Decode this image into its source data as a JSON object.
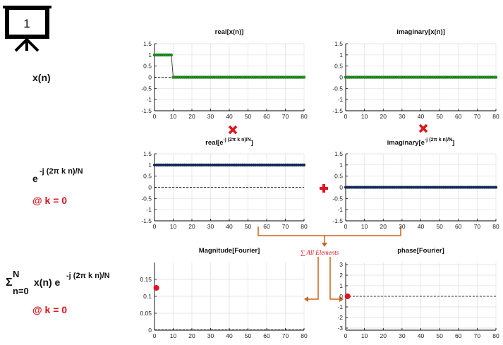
{
  "slide": {
    "number": "1",
    "xn_label": "x(n)",
    "exp_base": "e",
    "exp_sup": "-j (2π k n)/N",
    "k_note_1": "@ k = 0",
    "sum_sigma": "Σ",
    "sum_upper": "N",
    "sum_lower": "n=0",
    "sum_body": "x(n) e",
    "sum_sup": "-j (2π k n)/N",
    "k_note_2": "@ k = 0",
    "all_elements": "∑ All Elements",
    "colors": {
      "accent": "#e0141e",
      "arrow": "#c8641e",
      "green": "#1a9a1a",
      "navy": "#1a1a80"
    }
  },
  "chart_data": [
    {
      "id": "real_x",
      "type": "line",
      "title": "real[x(n)]",
      "xlim": [
        0,
        80
      ],
      "ylim": [
        -1.5,
        1.5
      ],
      "xticks": [
        0,
        10,
        20,
        30,
        40,
        50,
        60,
        70,
        80
      ],
      "yticks": [
        -1.5,
        -1,
        -0.5,
        0,
        0.5,
        1,
        1.5
      ],
      "grid": true,
      "series": [
        {
          "color": "#1a9a1a",
          "marker": "circle",
          "x_range": [
            0,
            80
          ],
          "rule": "1 for n in 0..9, 0 for n in 10..80"
        }
      ]
    },
    {
      "id": "imag_x",
      "type": "line",
      "title": "imaginary[x(n)]",
      "xlim": [
        0,
        80
      ],
      "ylim": [
        -1.5,
        1.5
      ],
      "xticks": [
        0,
        10,
        20,
        30,
        40,
        50,
        60,
        70,
        80
      ],
      "yticks": [
        -1.5,
        -1,
        -0.5,
        0,
        0.5,
        1,
        1.5
      ],
      "grid": true,
      "series": [
        {
          "color": "#1a9a1a",
          "marker": "circle",
          "x_range": [
            0,
            80
          ],
          "rule": "0 for all n"
        }
      ]
    },
    {
      "id": "real_e",
      "type": "line",
      "title_base": "real[e",
      "title_sup": "-j (2π k n)/N",
      "title_end": "]",
      "xlim": [
        0,
        80
      ],
      "ylim": [
        -1.5,
        1.5
      ],
      "xticks": [
        0,
        10,
        20,
        30,
        40,
        50,
        60,
        70,
        80
      ],
      "yticks": [
        -1.5,
        -1,
        -0.5,
        0,
        0.5,
        1,
        1.5
      ],
      "grid": true,
      "series": [
        {
          "color": "#1a1a80",
          "marker": "circle",
          "x_range": [
            0,
            80
          ],
          "rule": "1 for all n"
        }
      ]
    },
    {
      "id": "imag_e",
      "type": "line",
      "title_base": "imaginary[e",
      "title_sup": "-j (2π k n)/N",
      "title_end": "]",
      "xlim": [
        0,
        80
      ],
      "ylim": [
        -1.5,
        1.5
      ],
      "xticks": [
        0,
        10,
        20,
        30,
        40,
        50,
        60,
        70,
        80
      ],
      "yticks": [
        -1.5,
        -1,
        -0.5,
        0,
        0.5,
        1,
        1.5
      ],
      "grid": true,
      "series": [
        {
          "color": "#1a1a80",
          "marker": "circle",
          "x_range": [
            0,
            80
          ],
          "rule": "0 for all n"
        }
      ]
    },
    {
      "id": "mag",
      "type": "scatter",
      "title": "Magnitude[Fourier]",
      "xlim": [
        0,
        80
      ],
      "ylim": [
        0,
        0.2
      ],
      "xticks": [
        0,
        10,
        20,
        30,
        40,
        50,
        60,
        70,
        80
      ],
      "yticks": [
        0,
        0.05,
        0.1,
        0.15
      ],
      "grid": true,
      "points": [
        {
          "x": 1,
          "y": 0.125,
          "color": "#e0141e"
        }
      ]
    },
    {
      "id": "phase",
      "type": "scatter",
      "title": "phase[Fourier]",
      "xlim": [
        0,
        80
      ],
      "ylim": [
        -3.2,
        3.2
      ],
      "xticks": [
        0,
        10,
        20,
        30,
        40,
        50,
        60,
        70,
        80
      ],
      "yticks": [
        -3,
        -2,
        -1,
        0,
        1,
        2,
        3
      ],
      "grid": true,
      "points": [
        {
          "x": 1,
          "y": 0,
          "color": "#e0141e"
        }
      ]
    }
  ]
}
